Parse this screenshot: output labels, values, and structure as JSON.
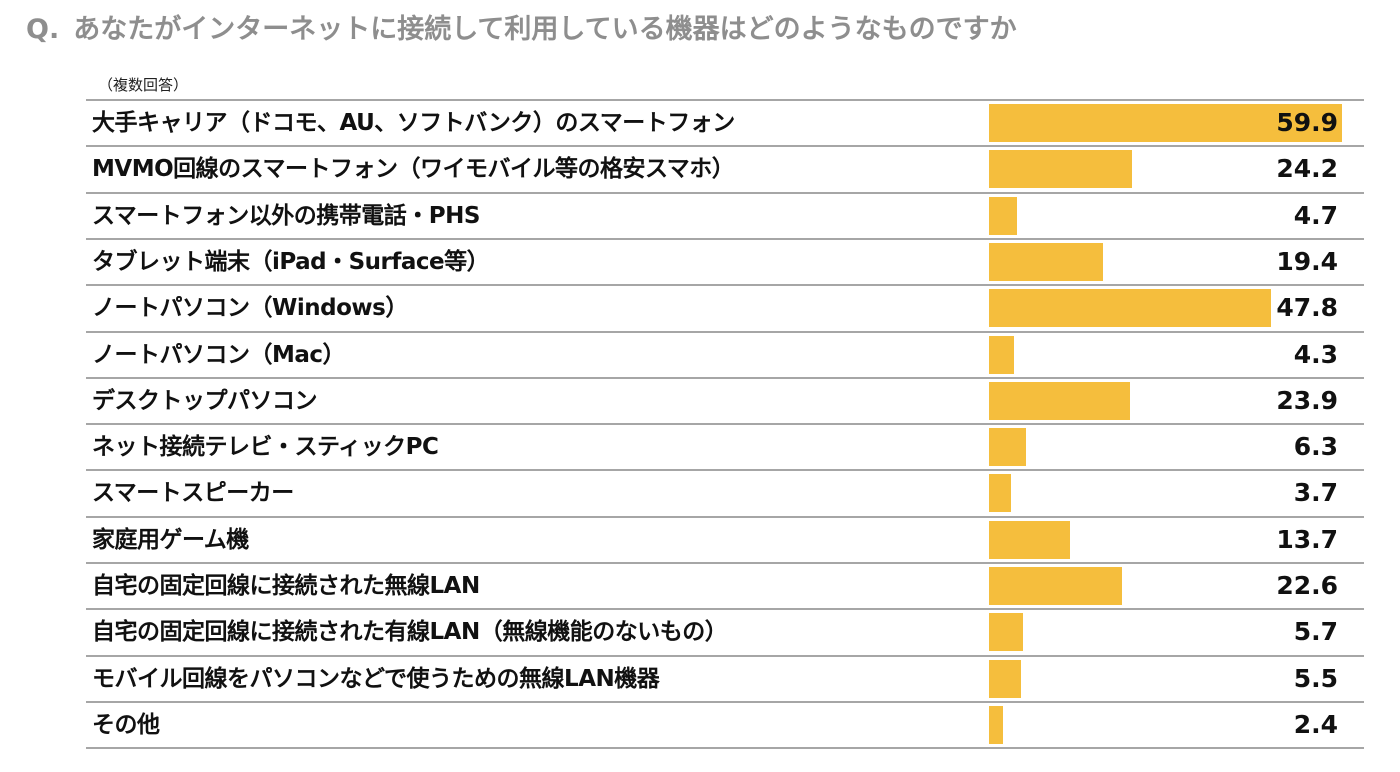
{
  "title": {
    "q_prefix": "Q.",
    "text": "あなたがインターネットに接続して利用している機器はどのようなものですか"
  },
  "note": "（複数回答）",
  "colors": {
    "bar": "#f5be3d",
    "title": "#8e8e8e",
    "rule": "#a6a6a6"
  },
  "chart_data": {
    "type": "bar",
    "orientation": "horizontal",
    "title": "あなたがインターネットに接続して利用している機器はどのようなものですか",
    "subtitle": "（複数回答）",
    "xlim": [
      0,
      60
    ],
    "grid": false,
    "legend": "none",
    "categories": [
      "大手キャリア（ドコモ、AU、ソフトバンク）のスマートフォン",
      "MVMO回線のスマートフォン（ワイモバイル等の格安スマホ）",
      "スマートフォン以外の携帯電話・PHS",
      "タブレット端末（iPad・Surface等）",
      "ノートパソコン（Windows）",
      "ノートパソコン（Mac）",
      "デスクトップパソコン",
      "ネット接続テレビ・スティックPC",
      "スマートスピーカー",
      "家庭用ゲーム機",
      "自宅の固定回線に接続された無線LAN",
      "自宅の固定回線に接続された有線LAN（無線機能のないもの）",
      "モバイル回線をパソコンなどで使うための無線LAN機器",
      "その他"
    ],
    "values": [
      59.9,
      24.2,
      4.7,
      19.4,
      47.8,
      4.3,
      23.9,
      6.3,
      3.7,
      13.7,
      22.6,
      5.7,
      5.5,
      2.4
    ],
    "value_labels": [
      "59.9",
      "24.2",
      "4.7",
      "19.4",
      "47.8",
      "4.3",
      "23.9",
      "6.3",
      "3.7",
      "13.7",
      "22.6",
      "5.7",
      "5.5",
      "2.4"
    ]
  }
}
